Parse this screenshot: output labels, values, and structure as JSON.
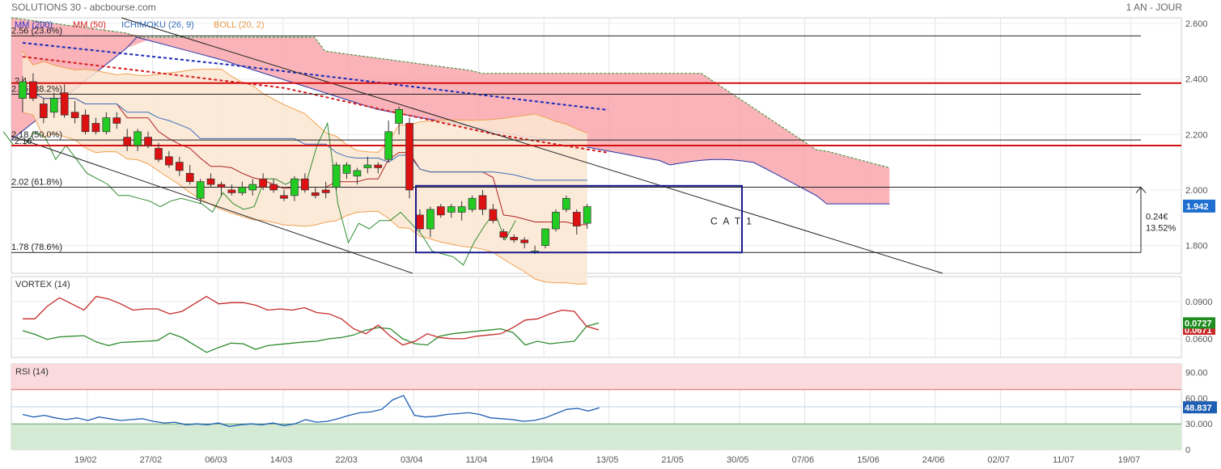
{
  "header": {
    "title": "SOLUTIONS 30 - abcbourse.com",
    "period": "1 AN - JOUR"
  },
  "legend": [
    {
      "label": "MM (200)",
      "color": "#2b36c8"
    },
    {
      "label": "MM (50)",
      "color": "#d42020"
    },
    {
      "label": "ICHIMOKU (26, 9)",
      "color": "#3a6fb8"
    },
    {
      "label": "BOLL (20, 2)",
      "color": "#e89a4a"
    }
  ],
  "colors": {
    "up": "#22cc22",
    "down": "#dd1111",
    "cloud_bull": "#7fd27f",
    "cloud_bear": "#f7a0a8",
    "boll_fill": "#fce6d2",
    "mm200": "#1a2bb8",
    "mm50": "#d42020"
  },
  "chart_data": [
    {
      "type": "candlestick",
      "ylim": [
        1.7,
        2.62
      ],
      "y_ticks": [
        "2.600",
        "2.400",
        "2.200",
        "2.000",
        "1.800"
      ],
      "x_ticks": [
        "19/02",
        "27/02",
        "06/03",
        "14/03",
        "22/03",
        "03/04",
        "11/04",
        "19/04",
        "13/05",
        "21/05",
        "30/05",
        "07/06",
        "15/06",
        "24/06",
        "02/07",
        "11/07",
        "19/07"
      ],
      "last_price": "1.942",
      "fibonacci": [
        {
          "label": "2.56  (23.6%)",
          "value": 2.555
        },
        {
          "label": "2.35  (38.2%)",
          "value": 2.345
        },
        {
          "label": "2.18  (50.0%)",
          "value": 2.18
        },
        {
          "label": "2.02  (61.8%)",
          "value": 2.01
        },
        {
          "label": "1.78  (78.6%)",
          "value": 1.775
        }
      ],
      "fib_extra_labels": [
        "2.4",
        "2.16"
      ],
      "resistance_lines": [
        2.385,
        2.16
      ],
      "annotation_box": {
        "label": "C A T 1",
        "top": 2.015,
        "bottom": 1.775
      },
      "measure": {
        "label_1": "0.24€",
        "label_2": "13.52%",
        "top": 2.01,
        "bottom": 1.775
      },
      "candles": [
        {
          "date": "14/02",
          "o": 2.33,
          "h": 2.41,
          "l": 2.28,
          "c": 2.39
        },
        {
          "date": "15/02",
          "o": 2.39,
          "h": 2.42,
          "l": 2.32,
          "c": 2.33
        },
        {
          "date": "16/02",
          "o": 2.31,
          "h": 2.33,
          "l": 2.24,
          "c": 2.26
        },
        {
          "date": "19/02",
          "o": 2.28,
          "h": 2.35,
          "l": 2.26,
          "c": 2.33
        },
        {
          "date": "20/02",
          "o": 2.35,
          "h": 2.38,
          "l": 2.26,
          "c": 2.27
        },
        {
          "date": "21/02",
          "o": 2.28,
          "h": 2.32,
          "l": 2.24,
          "c": 2.26
        },
        {
          "date": "22/02",
          "o": 2.27,
          "h": 2.29,
          "l": 2.2,
          "c": 2.21
        },
        {
          "date": "23/02",
          "o": 2.24,
          "h": 2.26,
          "l": 2.2,
          "c": 2.21
        },
        {
          "date": "26/02",
          "o": 2.21,
          "h": 2.28,
          "l": 2.2,
          "c": 2.26
        },
        {
          "date": "27/02",
          "o": 2.26,
          "h": 2.28,
          "l": 2.22,
          "c": 2.24
        },
        {
          "date": "28/02",
          "o": 2.19,
          "h": 2.22,
          "l": 2.14,
          "c": 2.16
        },
        {
          "date": "01/03",
          "o": 2.16,
          "h": 2.22,
          "l": 2.14,
          "c": 2.21
        },
        {
          "date": "02/03",
          "o": 2.19,
          "h": 2.21,
          "l": 2.15,
          "c": 2.16
        },
        {
          "date": "03/03",
          "o": 2.15,
          "h": 2.17,
          "l": 2.1,
          "c": 2.11
        },
        {
          "date": "04/03",
          "o": 2.12,
          "h": 2.14,
          "l": 2.08,
          "c": 2.09
        },
        {
          "date": "05/03",
          "o": 2.1,
          "h": 2.12,
          "l": 2.05,
          "c": 2.07
        },
        {
          "date": "06/03",
          "o": 2.06,
          "h": 2.09,
          "l": 2.02,
          "c": 2.03
        },
        {
          "date": "07/03",
          "o": 1.97,
          "h": 2.04,
          "l": 1.95,
          "c": 2.03
        },
        {
          "date": "08/03",
          "o": 2.04,
          "h": 2.06,
          "l": 2.01,
          "c": 2.02
        },
        {
          "date": "09/03",
          "o": 2.02,
          "h": 2.03,
          "l": 1.98,
          "c": 2.01
        },
        {
          "date": "12/03",
          "o": 2.0,
          "h": 2.02,
          "l": 1.98,
          "c": 1.99
        },
        {
          "date": "13/03",
          "o": 1.99,
          "h": 2.03,
          "l": 1.98,
          "c": 2.01
        },
        {
          "date": "14/03",
          "o": 2.0,
          "h": 2.04,
          "l": 1.98,
          "c": 2.02
        },
        {
          "date": "15/03",
          "o": 2.04,
          "h": 2.06,
          "l": 2.0,
          "c": 2.01
        },
        {
          "date": "16/03",
          "o": 2.02,
          "h": 2.04,
          "l": 1.99,
          "c": 2.0
        },
        {
          "date": "19/03",
          "o": 1.98,
          "h": 2.0,
          "l": 1.96,
          "c": 1.97
        },
        {
          "date": "20/03",
          "o": 1.98,
          "h": 2.05,
          "l": 1.96,
          "c": 2.04
        },
        {
          "date": "21/03",
          "o": 2.04,
          "h": 2.06,
          "l": 1.99,
          "c": 2.0
        },
        {
          "date": "22/03",
          "o": 1.99,
          "h": 2.01,
          "l": 1.97,
          "c": 1.98
        },
        {
          "date": "23/03",
          "o": 2.0,
          "h": 2.03,
          "l": 1.97,
          "c": 1.99
        },
        {
          "date": "26/03",
          "o": 2.01,
          "h": 2.1,
          "l": 2.0,
          "c": 2.09
        },
        {
          "date": "27/03",
          "o": 2.06,
          "h": 2.1,
          "l": 2.04,
          "c": 2.09
        },
        {
          "date": "28/03",
          "o": 2.05,
          "h": 2.08,
          "l": 2.02,
          "c": 2.07
        },
        {
          "date": "29/03",
          "o": 2.08,
          "h": 2.12,
          "l": 2.06,
          "c": 2.09
        },
        {
          "date": "30/03",
          "o": 2.09,
          "h": 2.1,
          "l": 2.06,
          "c": 2.08
        },
        {
          "date": "02/04",
          "o": 2.11,
          "h": 2.25,
          "l": 2.1,
          "c": 2.21
        },
        {
          "date": "03/04",
          "o": 2.24,
          "h": 2.3,
          "l": 2.2,
          "c": 2.29
        },
        {
          "date": "04/04",
          "o": 2.24,
          "h": 2.26,
          "l": 1.97,
          "c": 2.0
        },
        {
          "date": "05/04",
          "o": 1.91,
          "h": 1.93,
          "l": 1.85,
          "c": 1.86
        },
        {
          "date": "06/04",
          "o": 1.86,
          "h": 1.94,
          "l": 1.83,
          "c": 1.93
        },
        {
          "date": "09/04",
          "o": 1.94,
          "h": 1.95,
          "l": 1.9,
          "c": 1.91
        },
        {
          "date": "10/04",
          "o": 1.92,
          "h": 1.95,
          "l": 1.9,
          "c": 1.94
        },
        {
          "date": "11/04",
          "o": 1.92,
          "h": 1.96,
          "l": 1.89,
          "c": 1.94
        },
        {
          "date": "12/04",
          "o": 1.93,
          "h": 1.98,
          "l": 1.92,
          "c": 1.97
        },
        {
          "date": "13/04",
          "o": 1.98,
          "h": 2.0,
          "l": 1.91,
          "c": 1.93
        },
        {
          "date": "16/04",
          "o": 1.93,
          "h": 1.95,
          "l": 1.88,
          "c": 1.89
        },
        {
          "date": "17/04",
          "o": 1.85,
          "h": 1.86,
          "l": 1.82,
          "c": 1.83
        },
        {
          "date": "18/04",
          "o": 1.83,
          "h": 1.84,
          "l": 1.81,
          "c": 1.82
        },
        {
          "date": "19/04",
          "o": 1.82,
          "h": 1.83,
          "l": 1.79,
          "c": 1.81
        },
        {
          "date": "20/04",
          "o": 1.78,
          "h": 1.8,
          "l": 1.77,
          "c": 1.78
        },
        {
          "date": "23/04",
          "o": 1.8,
          "h": 1.86,
          "l": 1.79,
          "c": 1.86
        },
        {
          "date": "24/04",
          "o": 1.86,
          "h": 1.93,
          "l": 1.85,
          "c": 1.92
        },
        {
          "date": "25/04",
          "o": 1.93,
          "h": 1.98,
          "l": 1.92,
          "c": 1.97
        },
        {
          "date": "26/04",
          "o": 1.92,
          "h": 1.93,
          "l": 1.84,
          "c": 1.87
        },
        {
          "date": "27/04",
          "o": 1.88,
          "h": 1.95,
          "l": 1.86,
          "c": 1.94
        }
      ]
    },
    {
      "type": "line",
      "title": "VORTEX (14)",
      "y_ticks": [
        "0.0900",
        "0.0600"
      ],
      "ylim": [
        0.045,
        0.11
      ],
      "last_plus": "0.0727",
      "last_minus": "0.0671",
      "series": [
        {
          "name": "VI+",
          "color": "#2e8b2e",
          "values": [
            0.0665,
            0.0635,
            0.0595,
            0.0615,
            0.062,
            0.0625,
            0.0575,
            0.0545,
            0.057,
            0.0575,
            0.058,
            0.0585,
            0.0645,
            0.061,
            0.055,
            0.049,
            0.053,
            0.0565,
            0.056,
            0.0515,
            0.0545,
            0.0555,
            0.0565,
            0.0575,
            0.058,
            0.06,
            0.061,
            0.063,
            0.067,
            0.069,
            0.068,
            0.06,
            0.056,
            0.055,
            0.062,
            0.064,
            0.065,
            0.066,
            0.067,
            0.068,
            0.065,
            0.055,
            0.058,
            0.056,
            0.057,
            0.058,
            0.07,
            0.0727
          ]
        },
        {
          "name": "VI-",
          "color": "#c62828",
          "values": [
            0.076,
            0.076,
            0.086,
            0.093,
            0.088,
            0.083,
            0.094,
            0.092,
            0.088,
            0.083,
            0.084,
            0.084,
            0.08,
            0.082,
            0.088,
            0.094,
            0.088,
            0.089,
            0.089,
            0.087,
            0.083,
            0.084,
            0.083,
            0.085,
            0.081,
            0.08,
            0.076,
            0.068,
            0.064,
            0.071,
            0.062,
            0.055,
            0.058,
            0.064,
            0.061,
            0.06,
            0.06,
            0.062,
            0.063,
            0.064,
            0.069,
            0.075,
            0.076,
            0.08,
            0.083,
            0.082,
            0.07,
            0.0671
          ]
        }
      ]
    },
    {
      "type": "line",
      "title": "RSI (14)",
      "y_ticks": [
        "90.00",
        "60.00",
        "30.000",
        "0"
      ],
      "ylim": [
        0,
        100
      ],
      "last_value": "48.837",
      "series": [
        {
          "name": "RSI",
          "color": "#1f5fb3",
          "values": [
            41,
            38,
            40,
            37,
            35,
            37,
            34,
            38,
            36,
            34,
            35,
            36,
            33,
            31,
            32,
            29,
            30,
            29,
            31,
            27,
            29,
            30,
            29,
            31,
            28,
            30,
            35,
            32,
            33,
            36,
            40,
            43,
            44,
            47,
            58,
            63,
            40,
            38,
            39,
            41,
            42,
            43,
            41,
            37,
            36,
            35,
            33,
            34,
            37,
            42,
            47,
            48,
            45,
            48.837
          ]
        }
      ]
    }
  ]
}
